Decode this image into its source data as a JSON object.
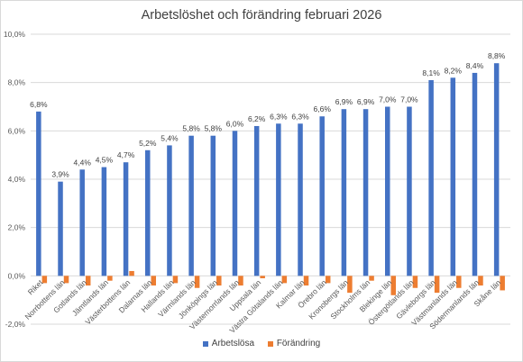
{
  "chart_data": {
    "type": "bar",
    "title": "Arbetslöshet och förändring februari 2026",
    "xlabel": "",
    "ylabel": "",
    "ylim": [
      -2,
      10
    ],
    "y_ticks": [
      "-2,0%",
      "0,0%",
      "2,0%",
      "4,0%",
      "6,0%",
      "8,0%",
      "10,0%"
    ],
    "grid": true,
    "legend_position": "bottom",
    "categories": [
      "Riket",
      "Norrbottens län",
      "Gotlands län",
      "Jämtlands län",
      "Västerbottens län",
      "Dalarnas län",
      "Hallands län",
      "Värmlands län",
      "Jönköpings län",
      "Västernorrlands län",
      "Uppsala län",
      "Västra Götalands län",
      "Kalmar län",
      "Örebro län",
      "Kronobergs län",
      "Stockholms län",
      "Blekinge län",
      "Östergötlands län",
      "Gävleborgs län",
      "Västmanlands län",
      "Södermanlands län",
      "Skåne län"
    ],
    "series": [
      {
        "name": "Arbetslösa",
        "color": "#4472c4",
        "values": [
          6.8,
          3.9,
          4.4,
          4.5,
          4.7,
          5.2,
          5.4,
          5.8,
          5.8,
          6.0,
          6.2,
          6.3,
          6.3,
          6.6,
          6.9,
          6.9,
          7.0,
          7.0,
          8.1,
          8.2,
          8.4,
          8.8
        ],
        "data_labels": [
          "6,8%",
          "3,9%",
          "4,4%",
          "4,5%",
          "4,7%",
          "5,2%",
          "5,4%",
          "5,8%",
          "5,8%",
          "6,0%",
          "6,2%",
          "6,3%",
          "6,3%",
          "6,6%",
          "6,9%",
          "6,9%",
          "7,0%",
          "7,0%",
          "8,1%",
          "8,2%",
          "8,4%",
          "8,8%"
        ]
      },
      {
        "name": "Förändring",
        "color": "#ed7d31",
        "values": [
          -0.3,
          -0.3,
          -0.4,
          -0.2,
          0.2,
          -0.4,
          -0.3,
          -0.5,
          -0.4,
          -0.4,
          -0.1,
          -0.3,
          -0.4,
          -0.3,
          -0.7,
          -0.2,
          -0.8,
          -0.5,
          -0.7,
          -0.5,
          -0.4,
          -0.6
        ]
      }
    ]
  }
}
